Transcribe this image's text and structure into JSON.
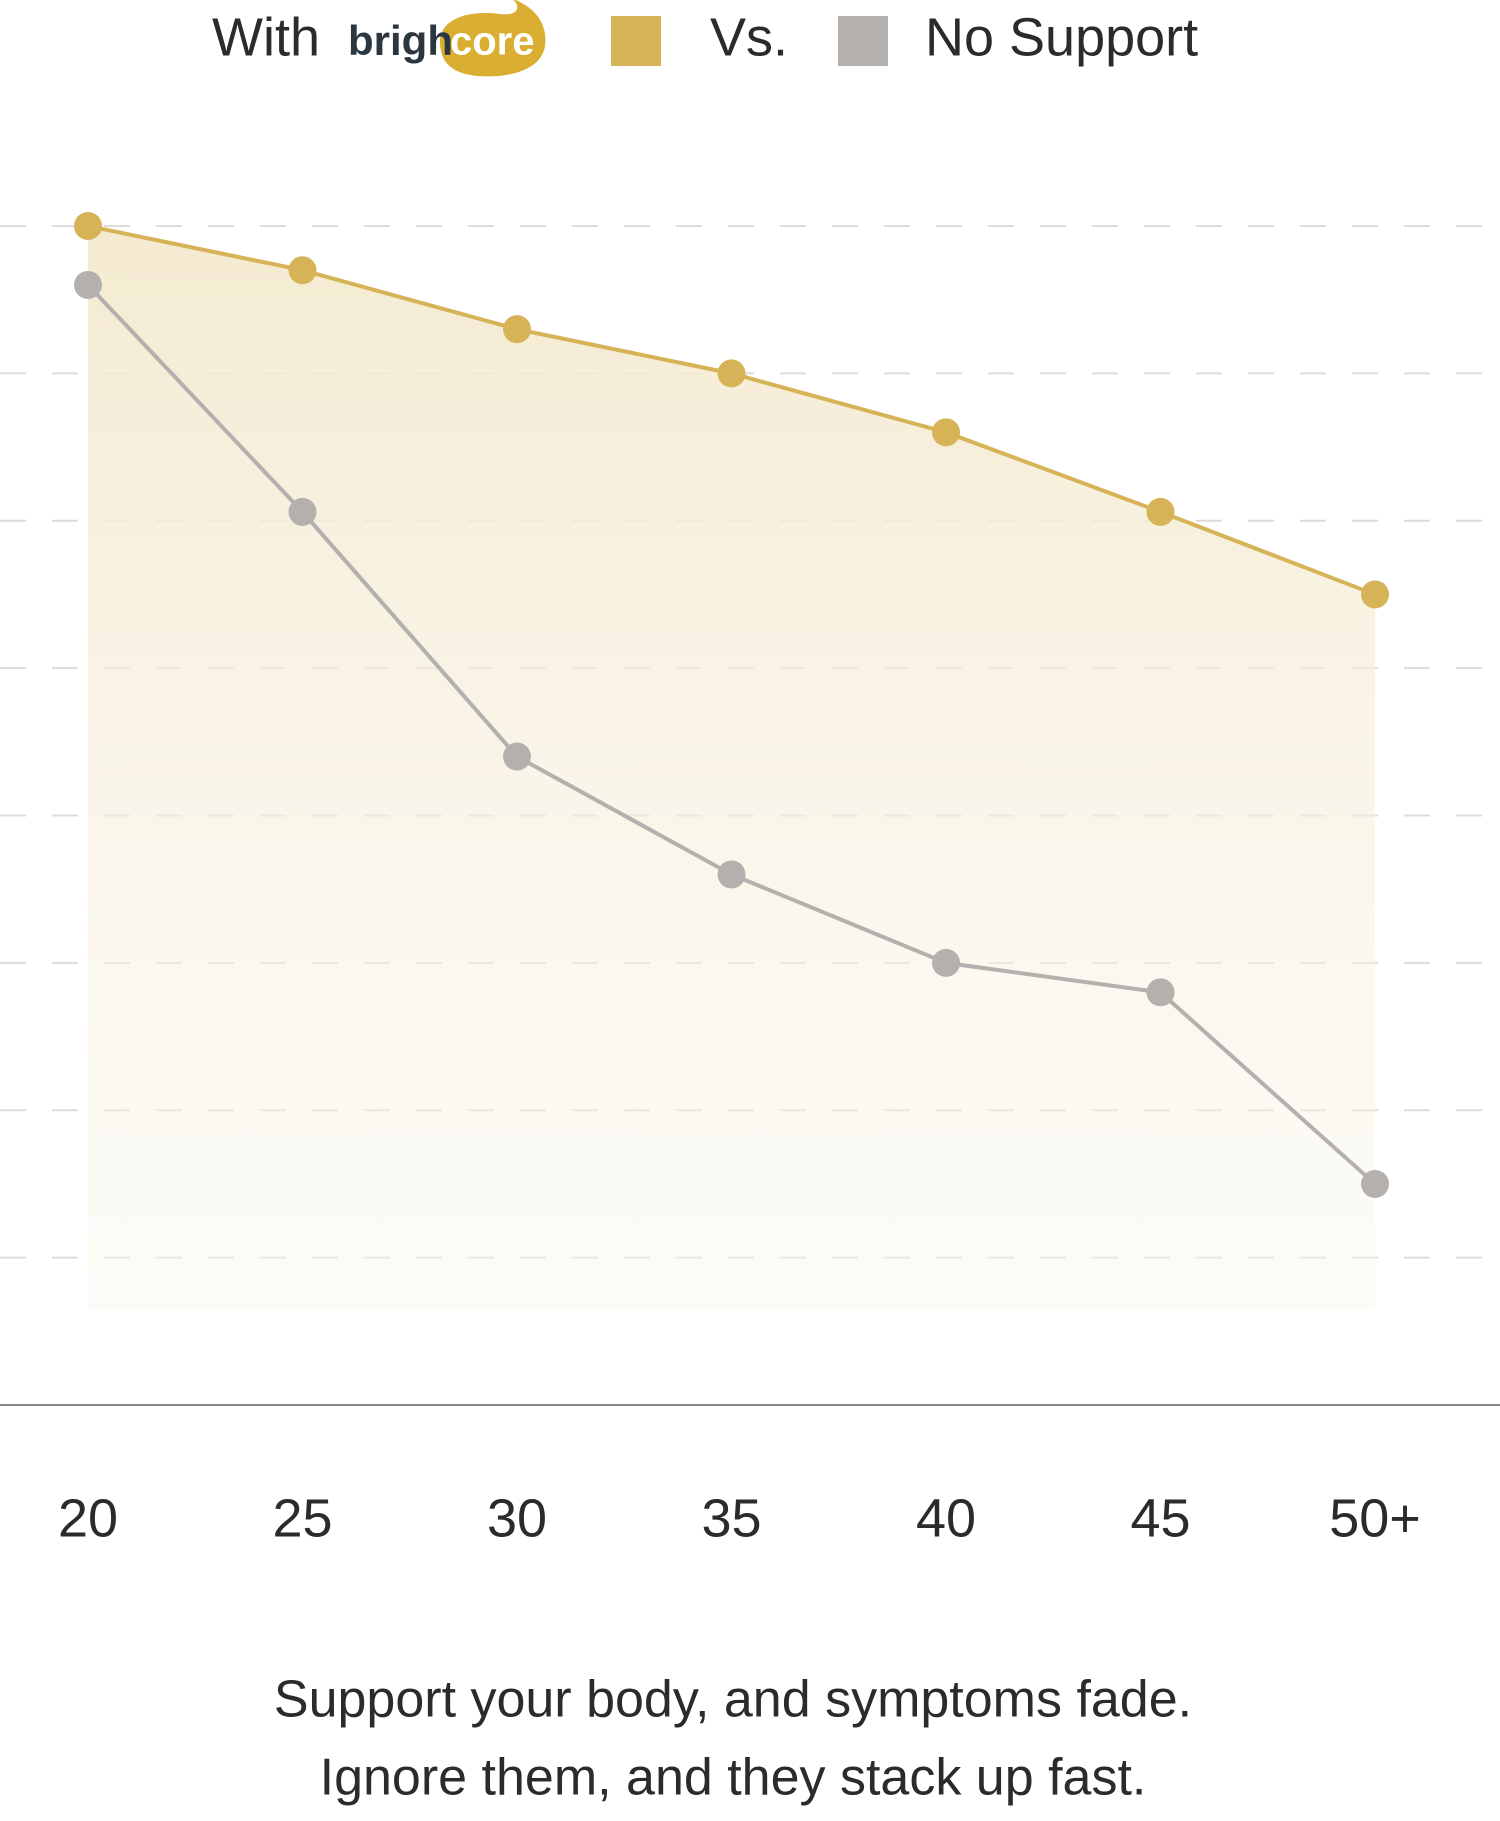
{
  "chart_data": {
    "type": "line",
    "legend_prefix": "With",
    "brand": {
      "dark_part": "brigh",
      "light_part": "core"
    },
    "legend_joiner": "Vs.",
    "categories": [
      "20",
      "25",
      "30",
      "35",
      "40",
      "45",
      "50+"
    ],
    "series": [
      {
        "name": "With",
        "color": "#d6b356",
        "values": [
          8.0,
          7.7,
          7.3,
          7.0,
          6.6,
          6.06,
          5.5
        ]
      },
      {
        "name": "No Support",
        "color": "#b3b0ae",
        "values": [
          7.6,
          6.06,
          4.4,
          3.6,
          3.0,
          2.8,
          1.5
        ]
      }
    ],
    "ylim": [
      0,
      8
    ],
    "yticks": [
      1,
      2,
      3,
      4,
      5,
      6,
      7,
      8
    ],
    "grid": true,
    "caption": [
      "Support your body, and symptoms fade.",
      "Ignore them, and they stack up fast."
    ]
  }
}
